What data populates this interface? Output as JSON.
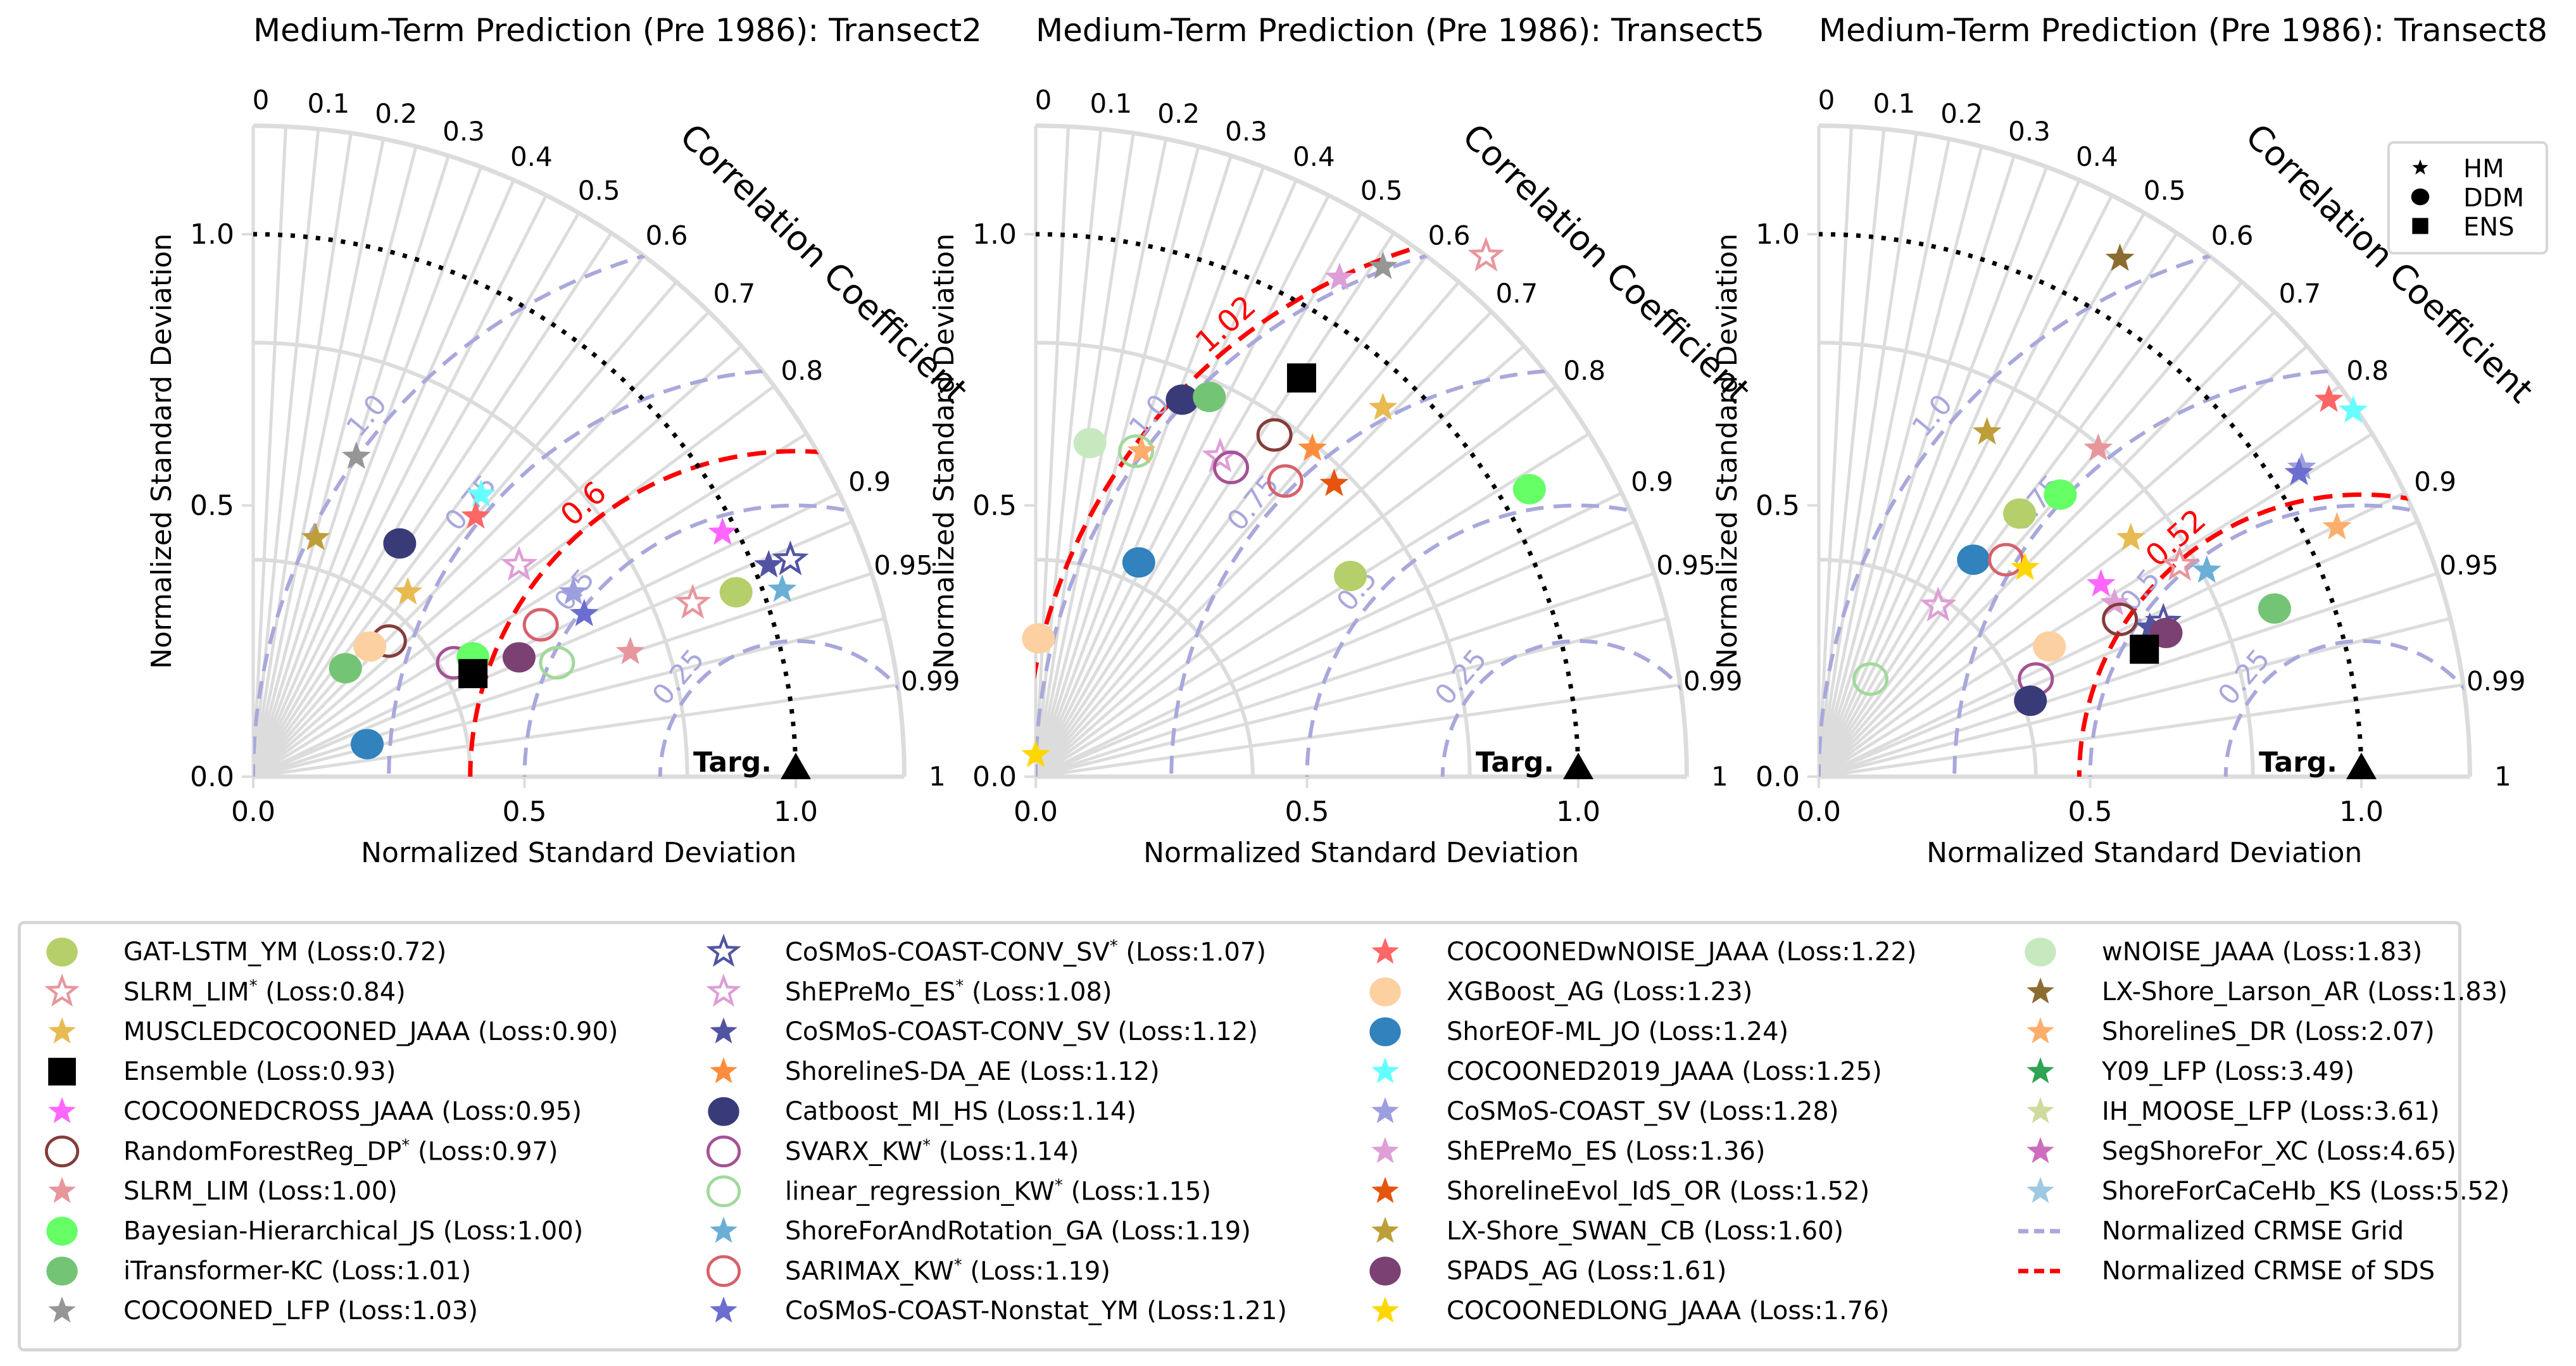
{
  "figure": {
    "shape_legend": [
      {
        "label": "HM",
        "shape": "star"
      },
      {
        "label": "DDM",
        "shape": "circle"
      },
      {
        "label": "ENS",
        "shape": "square"
      }
    ]
  },
  "models": [
    {
      "key": "gat",
      "name": "GAT-LSTM_YM",
      "star": false,
      "loss": "0.72",
      "shape": "circle",
      "filled": true,
      "color": "#b5cf6b"
    },
    {
      "key": "slrm_s",
      "name": "SLRM_LIM",
      "star": true,
      "loss": "0.84",
      "shape": "star",
      "filled": false,
      "color": "#e7969c"
    },
    {
      "key": "muscled",
      "name": "MUSCLEDCOCOONED_JAAA",
      "star": false,
      "loss": "0.90",
      "shape": "star",
      "filled": true,
      "color": "#e7ba52"
    },
    {
      "key": "ens",
      "name": "Ensemble",
      "star": false,
      "loss": "0.93",
      "shape": "square",
      "filled": true,
      "color": "#000000"
    },
    {
      "key": "cross",
      "name": "COCOONEDCROSS_JAAA",
      "star": false,
      "loss": "0.95",
      "shape": "star",
      "filled": true,
      "color": "#ff66ff"
    },
    {
      "key": "rf_s",
      "name": "RandomForestReg_DP",
      "star": true,
      "loss": "0.97",
      "shape": "circle",
      "filled": false,
      "color": "#843c39"
    },
    {
      "key": "slrm",
      "name": "SLRM_LIM",
      "star": false,
      "loss": "1.00",
      "shape": "star",
      "filled": true,
      "color": "#e7969c"
    },
    {
      "key": "bayes",
      "name": "Bayesian-Hierarchical_JS",
      "star": false,
      "loss": "1.00",
      "shape": "circle",
      "filled": true,
      "color": "#66ff66"
    },
    {
      "key": "itrans",
      "name": "iTransformer-KC",
      "star": false,
      "loss": "1.01",
      "shape": "circle",
      "filled": true,
      "color": "#74c476"
    },
    {
      "key": "coc_lfp",
      "name": "COCOONED_LFP",
      "star": false,
      "loss": "1.03",
      "shape": "star",
      "filled": true,
      "color": "#969696"
    },
    {
      "key": "conv_s",
      "name": "CoSMoS-COAST-CONV_SV",
      "star": true,
      "loss": "1.07",
      "shape": "star",
      "filled": false,
      "color": "#5254a3"
    },
    {
      "key": "sheprem_s",
      "name": "ShEPreMo_ES",
      "star": true,
      "loss": "1.08",
      "shape": "star",
      "filled": false,
      "color": "#de9ed6"
    },
    {
      "key": "conv",
      "name": "CoSMoS-COAST-CONV_SV",
      "star": false,
      "loss": "1.12",
      "shape": "star",
      "filled": true,
      "color": "#5254a3"
    },
    {
      "key": "sda",
      "name": "ShorelineS-DA_AE",
      "star": false,
      "loss": "1.12",
      "shape": "star",
      "filled": true,
      "color": "#fd8d3c"
    },
    {
      "key": "catb",
      "name": "Catboost_MI_HS",
      "star": false,
      "loss": "1.14",
      "shape": "circle",
      "filled": true,
      "color": "#393b79"
    },
    {
      "key": "svarx_s",
      "name": "SVARX_KW",
      "star": true,
      "loss": "1.14",
      "shape": "circle",
      "filled": false,
      "color": "#a55194"
    },
    {
      "key": "linreg_s",
      "name": "linear_regression_KW",
      "star": true,
      "loss": "1.15",
      "shape": "circle",
      "filled": false,
      "color": "#a1d99b"
    },
    {
      "key": "sfrot",
      "name": "ShoreForAndRotation_GA",
      "star": false,
      "loss": "1.19",
      "shape": "star",
      "filled": true,
      "color": "#6baed6"
    },
    {
      "key": "sarimax_s",
      "name": "SARIMAX_KW",
      "star": true,
      "loss": "1.19",
      "shape": "circle",
      "filled": false,
      "color": "#d6616b"
    },
    {
      "key": "nonstat",
      "name": "CoSMoS-COAST-Nonstat_YM",
      "star": false,
      "loss": "1.21",
      "shape": "star",
      "filled": true,
      "color": "#6b6ecf"
    },
    {
      "key": "wnoise_c",
      "name": "COCOONEDwNOISE_JAAA",
      "star": false,
      "loss": "1.22",
      "shape": "star",
      "filled": true,
      "color": "#ff6666"
    },
    {
      "key": "xgb",
      "name": "XGBoost_AG",
      "star": false,
      "loss": "1.23",
      "shape": "circle",
      "filled": true,
      "color": "#fdd0a2"
    },
    {
      "key": "eof",
      "name": "ShorEOF-ML_JO",
      "star": false,
      "loss": "1.24",
      "shape": "circle",
      "filled": true,
      "color": "#3182bd"
    },
    {
      "key": "c2019",
      "name": "COCOONED2019_JAAA",
      "star": false,
      "loss": "1.25",
      "shape": "star",
      "filled": true,
      "color": "#66ffff"
    },
    {
      "key": "cosmos",
      "name": "CoSMoS-COAST_SV",
      "star": false,
      "loss": "1.28",
      "shape": "star",
      "filled": true,
      "color": "#9c9ede"
    },
    {
      "key": "sheprem",
      "name": "ShEPreMo_ES",
      "star": false,
      "loss": "1.36",
      "shape": "star",
      "filled": true,
      "color": "#de9ed6"
    },
    {
      "key": "evol",
      "name": "ShorelineEvol_IdS_OR",
      "star": false,
      "loss": "1.52",
      "shape": "star",
      "filled": true,
      "color": "#e6550d"
    },
    {
      "key": "lxswan",
      "name": "LX-Shore_SWAN_CB",
      "star": false,
      "loss": "1.60",
      "shape": "star",
      "filled": true,
      "color": "#bd9e39"
    },
    {
      "key": "spads",
      "name": "SPADS_AG",
      "star": false,
      "loss": "1.61",
      "shape": "circle",
      "filled": true,
      "color": "#7b4173"
    },
    {
      "key": "clong",
      "name": "COCOONEDLONG_JAAA",
      "star": false,
      "loss": "1.76",
      "shape": "star",
      "filled": true,
      "color": "#ffd700"
    },
    {
      "key": "wnoise",
      "name": "wNOISE_JAAA",
      "star": false,
      "loss": "1.83",
      "shape": "circle",
      "filled": true,
      "color": "#c7e9c0"
    },
    {
      "key": "lxlarson",
      "name": "LX-Shore_Larson_AR",
      "star": false,
      "loss": "1.83",
      "shape": "star",
      "filled": true,
      "color": "#8c6d31"
    },
    {
      "key": "sdr",
      "name": "ShorelineS_DR",
      "star": false,
      "loss": "2.07",
      "shape": "star",
      "filled": true,
      "color": "#fdae6b"
    },
    {
      "key": "y09",
      "name": "Y09_LFP",
      "star": false,
      "loss": "3.49",
      "shape": "star",
      "filled": true,
      "color": "#31a354"
    },
    {
      "key": "ihmoose",
      "name": "IH_MOOSE_LFP",
      "star": false,
      "loss": "3.61",
      "shape": "star",
      "filled": true,
      "color": "#cedb9c"
    },
    {
      "key": "segsf",
      "name": "SegShoreFor_XC",
      "star": false,
      "loss": "4.65",
      "shape": "star",
      "filled": true,
      "color": "#ce6dbd"
    },
    {
      "key": "sfcace",
      "name": "ShoreForCaCeHb_KS",
      "star": false,
      "loss": "5.52",
      "shape": "star",
      "filled": true,
      "color": "#9ecae1"
    }
  ],
  "line_legend": [
    {
      "label": "Normalized CRMSE Grid",
      "color": "#a8a8dc"
    },
    {
      "label": "Normalized CRMSE of SDS",
      "color": "#ff0000"
    }
  ],
  "chart_data": [
    {
      "type": "scatter",
      "subtype": "taylor-diagram",
      "title": "Medium-Term Prediction (Pre 1986): Transect2",
      "xlabel": "Normalized Standard Deviation",
      "ylabel": "Normalized Standard Deviation",
      "angular_label": "Correlation Coefficient",
      "xlim": [
        0,
        1.2
      ],
      "ylim": [
        0,
        1.2
      ],
      "ticks": [
        "0.0",
        "0.5",
        "1.0"
      ],
      "corr_ticks": [
        "0",
        "0.1",
        "0.2",
        "0.3",
        "0.4",
        "0.5",
        "0.6",
        "0.7",
        "0.8",
        "0.9",
        "0.95",
        "0.99",
        "1"
      ],
      "crmse_grid": [
        0.25,
        0.5,
        0.75,
        1.0
      ],
      "crmse_grid_labels": [
        "0.25",
        "0.5",
        "0.75",
        "1.0"
      ],
      "sds_crmse": 0.6,
      "sds_crmse_label": "0.6",
      "target_label": "Targ.",
      "reference_sd": 1.0,
      "points": [
        {
          "model": "coc_lfp",
          "x": 0.19,
          "y": 0.59
        },
        {
          "model": "lxswan",
          "x": 0.115,
          "y": 0.44
        },
        {
          "model": "catb",
          "x": 0.27,
          "y": 0.43
        },
        {
          "model": "c2019",
          "x": 0.42,
          "y": 0.52
        },
        {
          "model": "wnoise_c",
          "x": 0.41,
          "y": 0.48
        },
        {
          "model": "muscled",
          "x": 0.285,
          "y": 0.34
        },
        {
          "model": "sheprem_s",
          "x": 0.49,
          "y": 0.39
        },
        {
          "model": "rf_s",
          "x": 0.25,
          "y": 0.25
        },
        {
          "model": "xgb",
          "x": 0.215,
          "y": 0.24
        },
        {
          "model": "itrans",
          "x": 0.17,
          "y": 0.2
        },
        {
          "model": "svarx_s",
          "x": 0.37,
          "y": 0.21
        },
        {
          "model": "bayes",
          "x": 0.405,
          "y": 0.22
        },
        {
          "model": "ens",
          "x": 0.405,
          "y": 0.19
        },
        {
          "model": "spads",
          "x": 0.49,
          "y": 0.22
        },
        {
          "model": "sarimax_s",
          "x": 0.53,
          "y": 0.28
        },
        {
          "model": "linreg_s",
          "x": 0.56,
          "y": 0.21
        },
        {
          "model": "cosmos",
          "x": 0.59,
          "y": 0.34
        },
        {
          "model": "nonstat",
          "x": 0.61,
          "y": 0.3
        },
        {
          "model": "eof",
          "x": 0.21,
          "y": 0.06
        },
        {
          "model": "cross",
          "x": 0.865,
          "y": 0.45
        },
        {
          "model": "conv",
          "x": 0.95,
          "y": 0.39
        },
        {
          "model": "conv_s",
          "x": 0.99,
          "y": 0.4
        },
        {
          "model": "gat",
          "x": 0.89,
          "y": 0.34
        },
        {
          "model": "sfrot",
          "x": 0.975,
          "y": 0.345
        },
        {
          "model": "slrm_s",
          "x": 0.81,
          "y": 0.32
        },
        {
          "model": "slrm",
          "x": 0.695,
          "y": 0.23
        }
      ]
    },
    {
      "type": "scatter",
      "subtype": "taylor-diagram",
      "title": "Medium-Term Prediction (Pre 1986): Transect5",
      "xlabel": "Normalized Standard Deviation",
      "ylabel": "Normalized Standard Deviation",
      "angular_label": "Correlation Coefficient",
      "xlim": [
        0,
        1.2
      ],
      "ylim": [
        0,
        1.2
      ],
      "ticks": [
        "0.0",
        "0.5",
        "1.0"
      ],
      "corr_ticks": [
        "0",
        "0.1",
        "0.2",
        "0.3",
        "0.4",
        "0.5",
        "0.6",
        "0.7",
        "0.8",
        "0.9",
        "0.95",
        "0.99",
        "1"
      ],
      "crmse_grid": [
        0.25,
        0.5,
        0.75,
        1.0
      ],
      "crmse_grid_labels": [
        "0.25",
        "0.5",
        "0.75",
        "1.0"
      ],
      "sds_crmse": 1.02,
      "sds_crmse_label": "1.02",
      "target_label": "Targ.",
      "reference_sd": 1.0,
      "points": [
        {
          "model": "slrm_s",
          "x": 0.83,
          "y": 0.96
        },
        {
          "model": "sheprem",
          "x": 0.56,
          "y": 0.92
        },
        {
          "model": "coc_lfp",
          "x": 0.64,
          "y": 0.94
        },
        {
          "model": "ens",
          "x": 0.49,
          "y": 0.735
        },
        {
          "model": "catb",
          "x": 0.27,
          "y": 0.695
        },
        {
          "model": "itrans",
          "x": 0.32,
          "y": 0.7
        },
        {
          "model": "wnoise",
          "x": 0.1,
          "y": 0.615
        },
        {
          "model": "linreg_s",
          "x": 0.185,
          "y": 0.6
        },
        {
          "model": "sdr",
          "x": 0.195,
          "y": 0.6
        },
        {
          "model": "sheprem_s",
          "x": 0.34,
          "y": 0.59
        },
        {
          "model": "svarx_s",
          "x": 0.36,
          "y": 0.57
        },
        {
          "model": "rf_s",
          "x": 0.44,
          "y": 0.63
        },
        {
          "model": "sda",
          "x": 0.51,
          "y": 0.605
        },
        {
          "model": "sarimax_s",
          "x": 0.46,
          "y": 0.545
        },
        {
          "model": "evol",
          "x": 0.55,
          "y": 0.54
        },
        {
          "model": "muscled",
          "x": 0.64,
          "y": 0.68
        },
        {
          "model": "bayes",
          "x": 0.91,
          "y": 0.53
        },
        {
          "model": "eof",
          "x": 0.19,
          "y": 0.395
        },
        {
          "model": "gat",
          "x": 0.58,
          "y": 0.37
        },
        {
          "model": "xgb",
          "x": 0.005,
          "y": 0.255
        },
        {
          "model": "clong",
          "x": 0.0,
          "y": 0.04
        }
      ]
    },
    {
      "type": "scatter",
      "subtype": "taylor-diagram",
      "title": "Medium-Term Prediction (Pre 1986): Transect8",
      "xlabel": "Normalized Standard Deviation",
      "ylabel": "Normalized Standard Deviation",
      "angular_label": "Correlation Coefficient",
      "xlim": [
        0,
        1.2
      ],
      "ylim": [
        0,
        1.2
      ],
      "ticks": [
        "0.0",
        "0.5",
        "1.0"
      ],
      "corr_ticks": [
        "0",
        "0.1",
        "0.2",
        "0.3",
        "0.4",
        "0.5",
        "0.6",
        "0.7",
        "0.8",
        "0.9",
        "0.95",
        "0.99",
        "1"
      ],
      "crmse_grid": [
        0.25,
        0.5,
        0.75,
        1.0
      ],
      "crmse_grid_labels": [
        "0.25",
        "0.5",
        "0.75",
        "1.0"
      ],
      "sds_crmse": 0.52,
      "sds_crmse_label": "0.52",
      "target_label": "Targ.",
      "reference_sd": 1.0,
      "shape_legend_position": "top-right",
      "points": [
        {
          "model": "lxlarson",
          "x": 0.555,
          "y": 0.955
        },
        {
          "model": "lxswan",
          "x": 0.31,
          "y": 0.635
        },
        {
          "model": "slrm",
          "x": 0.515,
          "y": 0.605
        },
        {
          "model": "wnoise_c",
          "x": 0.94,
          "y": 0.695
        },
        {
          "model": "c2019",
          "x": 0.985,
          "y": 0.675
        },
        {
          "model": "cosmos",
          "x": 0.89,
          "y": 0.57
        },
        {
          "model": "nonstat",
          "x": 0.885,
          "y": 0.56
        },
        {
          "model": "bayes",
          "x": 0.445,
          "y": 0.52
        },
        {
          "model": "gat",
          "x": 0.37,
          "y": 0.485
        },
        {
          "model": "eof",
          "x": 0.285,
          "y": 0.4
        },
        {
          "model": "sarimax_s",
          "x": 0.345,
          "y": 0.4
        },
        {
          "model": "clong",
          "x": 0.38,
          "y": 0.385
        },
        {
          "model": "muscled",
          "x": 0.575,
          "y": 0.44
        },
        {
          "model": "sdr",
          "x": 0.955,
          "y": 0.46
        },
        {
          "model": "slrm_s",
          "x": 0.665,
          "y": 0.39
        },
        {
          "model": "sfrot",
          "x": 0.715,
          "y": 0.38
        },
        {
          "model": "cross",
          "x": 0.52,
          "y": 0.355
        },
        {
          "model": "sheprem",
          "x": 0.545,
          "y": 0.32
        },
        {
          "model": "sheprem_s",
          "x": 0.22,
          "y": 0.315
        },
        {
          "model": "rf_s",
          "x": 0.555,
          "y": 0.29
        },
        {
          "model": "conv",
          "x": 0.61,
          "y": 0.275
        },
        {
          "model": "conv_s",
          "x": 0.635,
          "y": 0.285
        },
        {
          "model": "spads",
          "x": 0.64,
          "y": 0.265
        },
        {
          "model": "ens",
          "x": 0.6,
          "y": 0.235
        },
        {
          "model": "xgb",
          "x": 0.425,
          "y": 0.24
        },
        {
          "model": "svarx_s",
          "x": 0.4,
          "y": 0.18
        },
        {
          "model": "catb",
          "x": 0.39,
          "y": 0.14
        },
        {
          "model": "itrans",
          "x": 0.84,
          "y": 0.31
        },
        {
          "model": "linreg_s",
          "x": 0.095,
          "y": 0.18
        }
      ]
    }
  ]
}
